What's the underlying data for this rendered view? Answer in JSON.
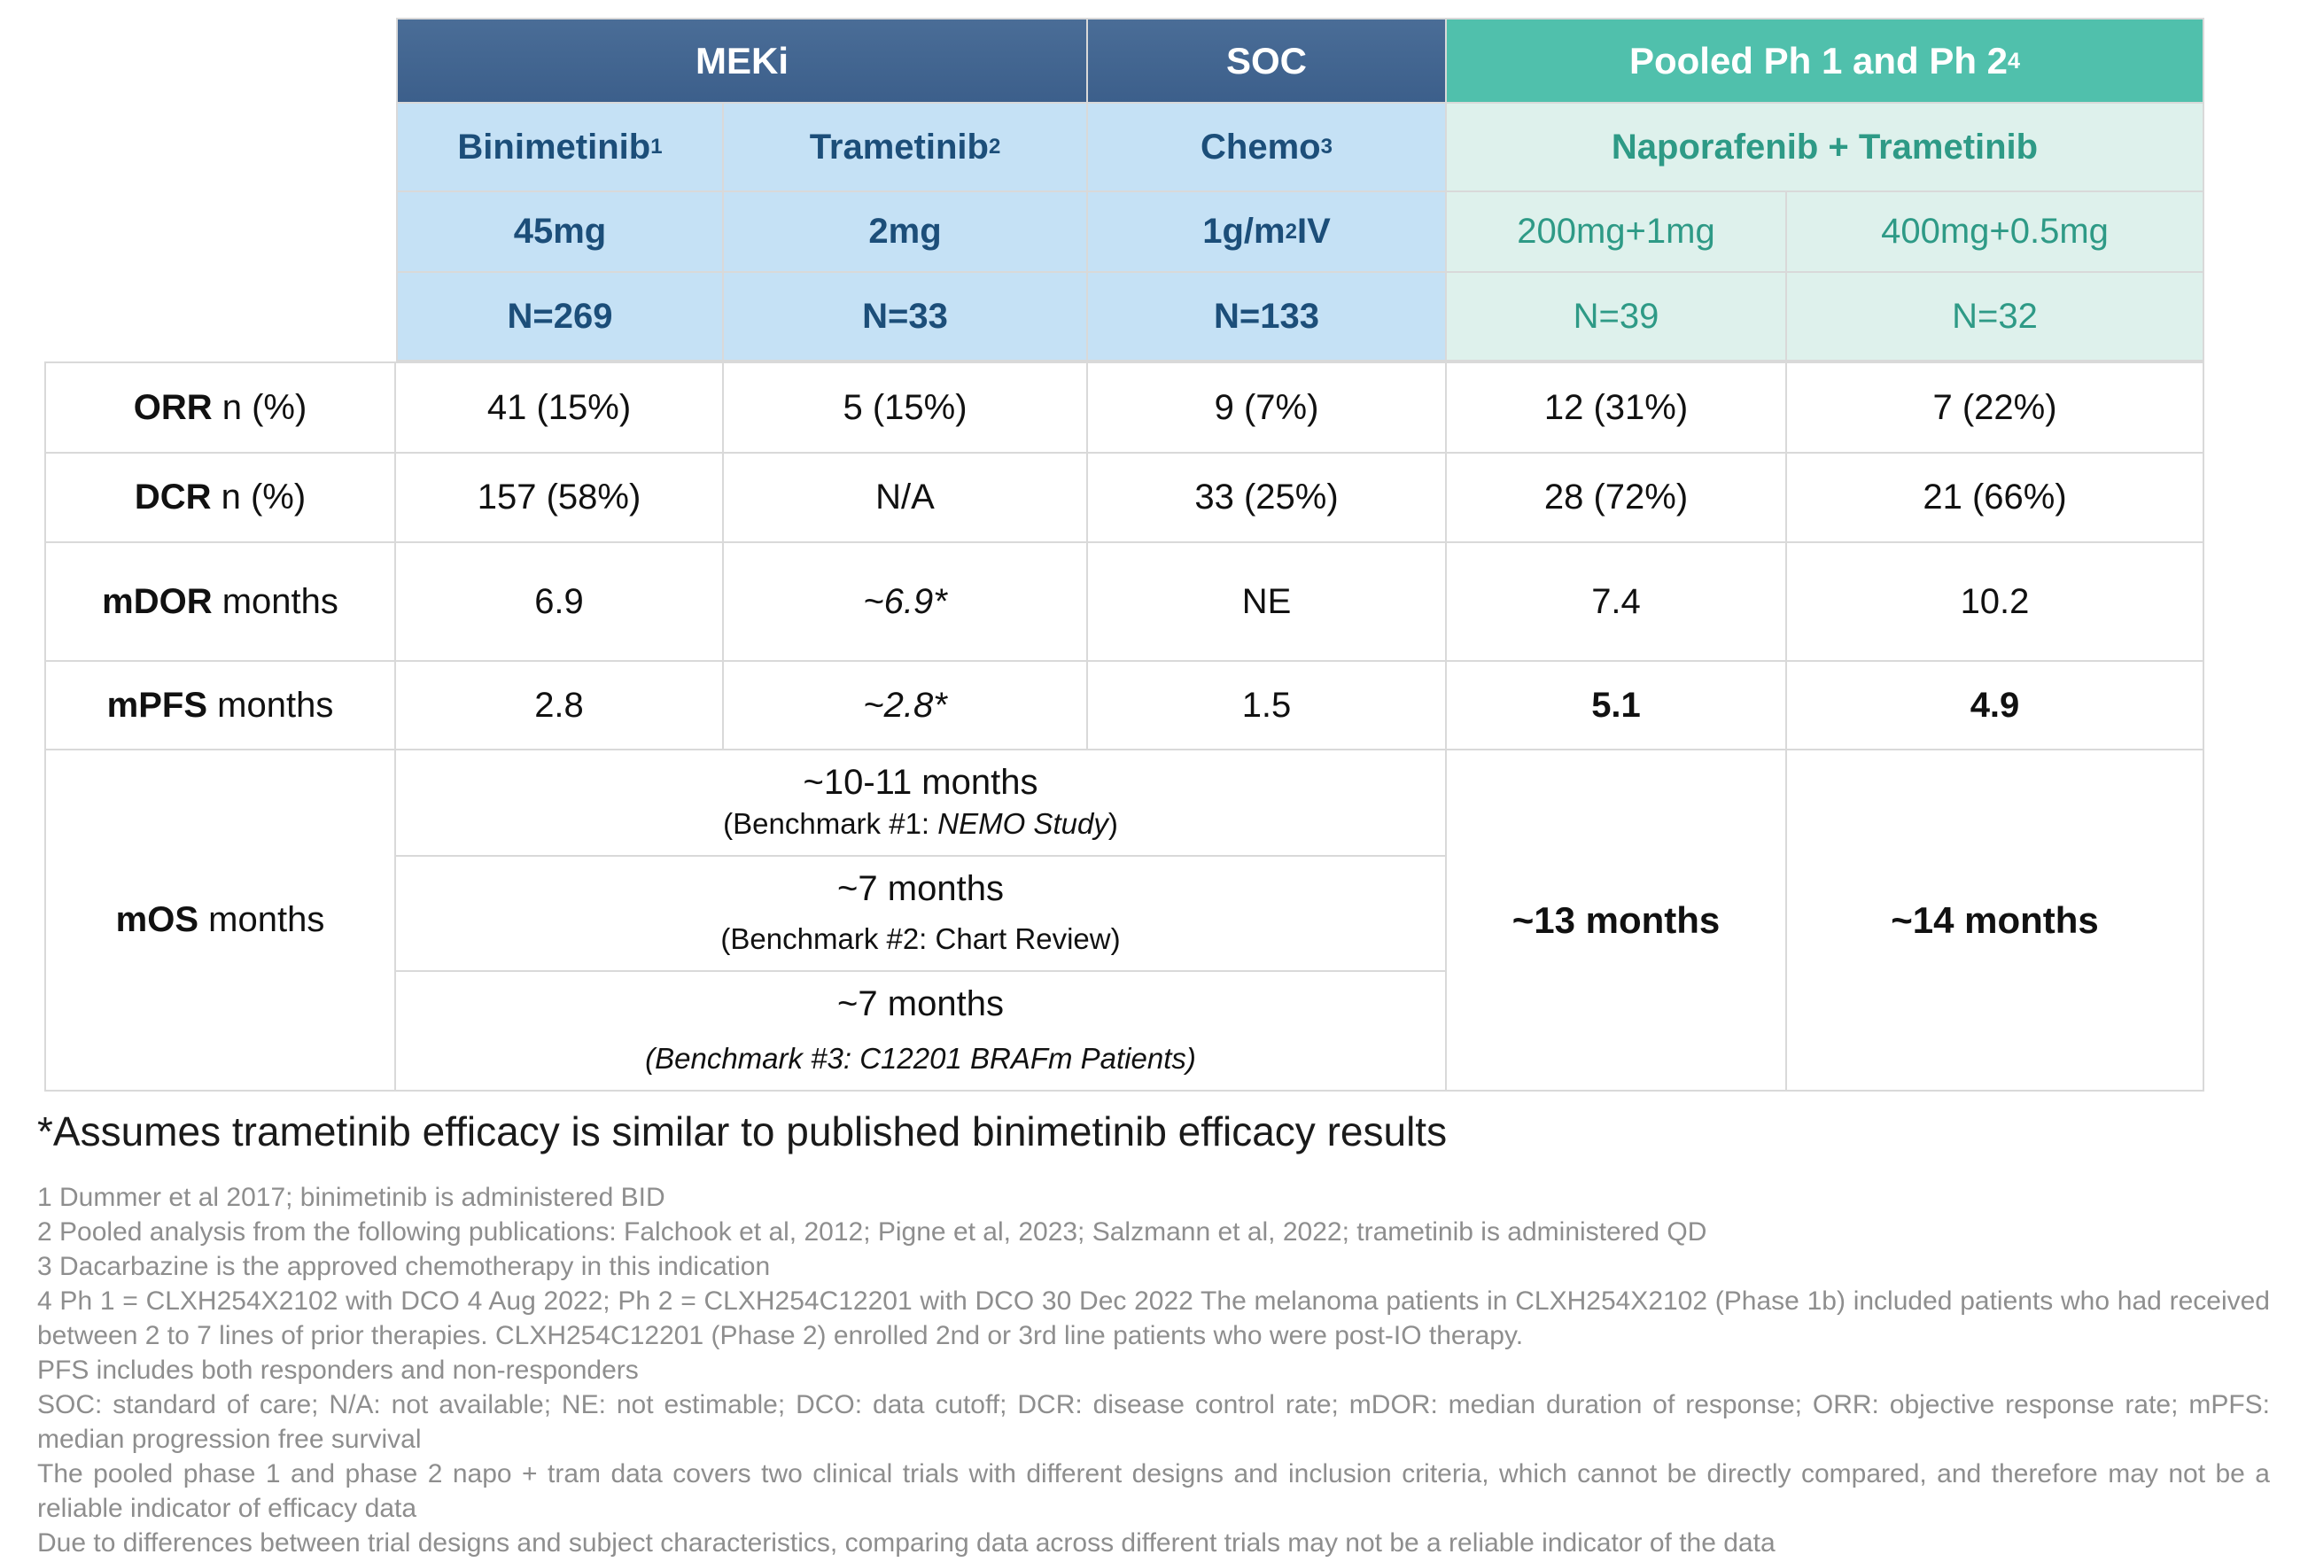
{
  "colors": {
    "navy_top": "#4a6d97",
    "navy_bottom": "#3c5f8b",
    "teal_bg": "#50c0ac",
    "light_blue": "#c5e1f5",
    "light_teal": "#def1ec",
    "navy_text": "#1c4e79",
    "teal_text": "#2e9a86",
    "border": "#d9d9d9",
    "footnote_text": "#8e8e8e"
  },
  "table": {
    "groups": {
      "meki": "MEKi",
      "soc": "SOC",
      "pooled": "Pooled Ph 1 and Ph 2",
      "pooled_sup": "4"
    },
    "drug_row": {
      "binimetinib": "Binimetinib",
      "binimetinib_sup": "1",
      "trametinib": "Trametinib",
      "trametinib_sup": "2",
      "chemo": "Chemo",
      "chemo_sup": "3",
      "napo_tram": "Naporafenib + Trametinib"
    },
    "dose_row": {
      "binimetinib": "45mg",
      "trametinib": "2mg",
      "chemo_pre": "1g/m",
      "chemo_sup": "2",
      "chemo_post": " IV",
      "napo200": "200mg+1mg",
      "napo400": "400mg+0.5mg"
    },
    "n_row": {
      "binimetinib": "N=269",
      "trametinib": "N=33",
      "chemo": "N=133",
      "napo200": "N=39",
      "napo400": "N=32"
    },
    "rows": {
      "orr": {
        "label_bold": "ORR",
        "label_rest": "  n (%)",
        "binimetinib": "41 (15%)",
        "trametinib": "5 (15%)",
        "chemo": "9 (7%)",
        "napo200": "12 (31%)",
        "napo400": "7 (22%)"
      },
      "dcr": {
        "label_bold": "DCR",
        "label_rest": "  n (%)",
        "binimetinib": "157 (58%)",
        "trametinib": "N/A",
        "chemo": "33 (25%)",
        "napo200": "28 (72%)",
        "napo400": "21 (66%)"
      },
      "mdor": {
        "label_bold": "mDOR",
        "label_rest": " months",
        "binimetinib": "6.9",
        "trametinib": "~6.9*",
        "chemo": "NE",
        "napo200": "7.4",
        "napo400": "10.2"
      },
      "mpfs": {
        "label_bold": "mPFS",
        "label_rest": " months",
        "binimetinib": "2.8",
        "trametinib": "~2.8*",
        "chemo": "1.5",
        "napo200": "5.1",
        "napo400": "4.9"
      },
      "mos": {
        "label_bold": "mOS",
        "label_rest": " months",
        "benchmarks": [
          {
            "value": "~10-11 months",
            "prefix": "(Benchmark #1: ",
            "italic": "NEMO Study",
            "suffix": ")"
          },
          {
            "value": "~7 months",
            "prefix": "(Benchmark #2: Chart Review)",
            "italic": "",
            "suffix": ""
          },
          {
            "value": "~7 months",
            "prefix": "",
            "italic": "(Benchmark #3: C12201 BRAFm Patients)",
            "suffix": ""
          }
        ],
        "napo200": "~13 months",
        "napo400": "~14 months"
      }
    }
  },
  "footnote_title": "*Assumes trametinib efficacy is similar to published binimetinib efficacy results",
  "footnotes": [
    "1 Dummer et al 2017; binimetinib is administered BID",
    "2 Pooled analysis from the following publications: Falchook et al, 2012; Pigne et al, 2023; Salzmann et al, 2022; trametinib is administered QD",
    "3 Dacarbazine is the approved chemotherapy in this indication",
    "4 Ph 1 = CLXH254X2102 with DCO 4 Aug 2022; Ph 2 = CLXH254C12201 with DCO 30 Dec 2022  The melanoma patients in CLXH254X2102 (Phase 1b) included patients who had received between 2 to 7 lines of prior therapies. CLXH254C12201 (Phase 2) enrolled 2nd or 3rd line patients who were post-IO therapy.",
    "PFS includes both responders and non-responders",
    "SOC: standard of care; N/A: not available; NE: not estimable; DCO: data cutoff; DCR: disease control rate; mDOR: median duration of response; ORR: objective response rate; mPFS: median progression free survival",
    "The pooled phase 1 and phase 2 napo + tram data covers two clinical trials with different designs and inclusion criteria, which cannot be directly compared, and therefore may not be a reliable indicator of efficacy data",
    "Due to differences between trial designs and subject characteristics, comparing data across different trials may not be a reliable indicator of the data"
  ]
}
